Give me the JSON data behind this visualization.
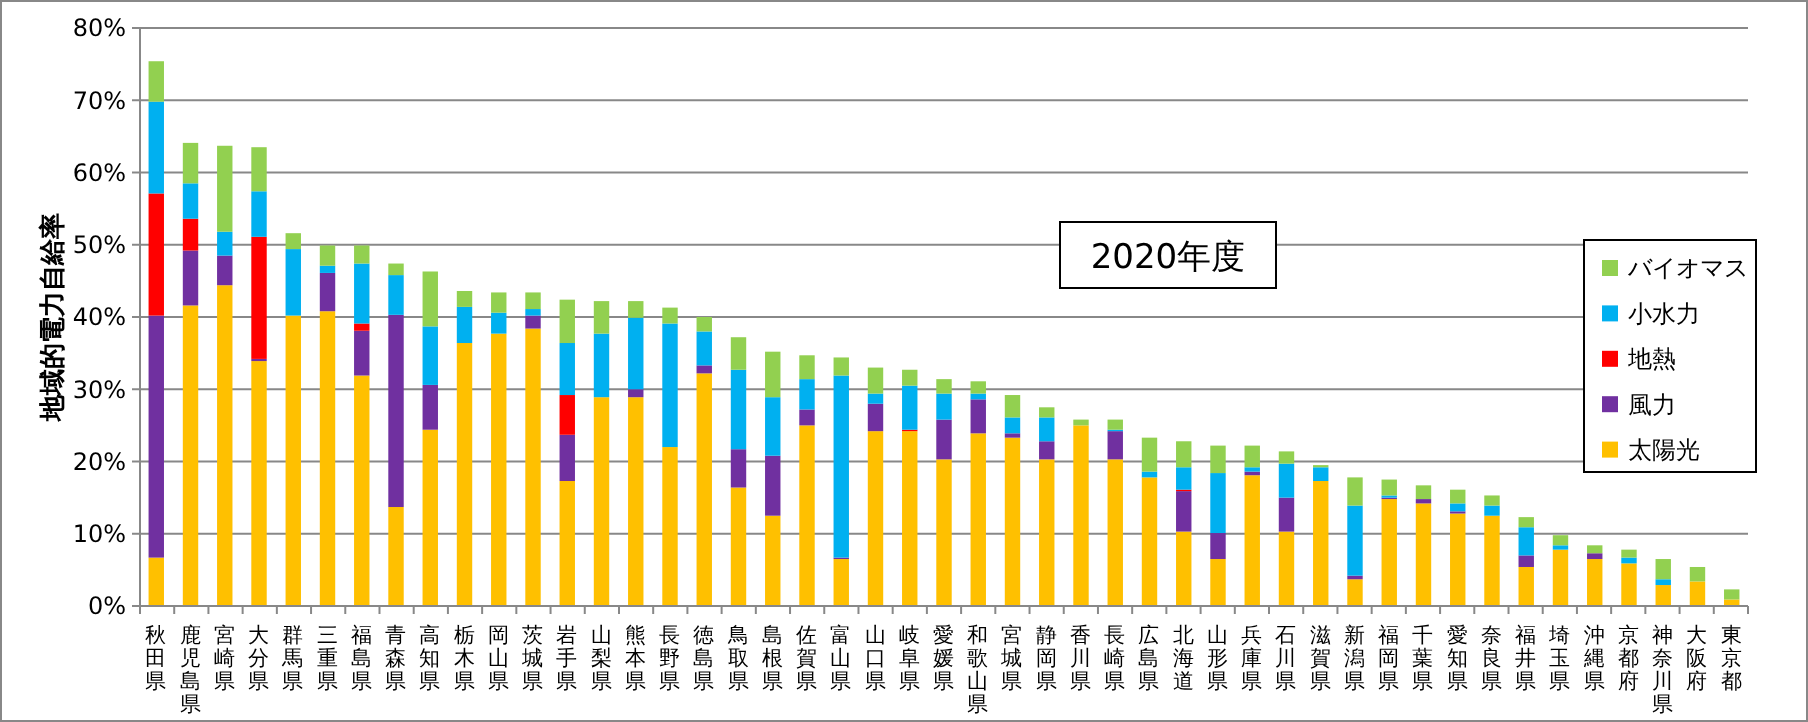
{
  "chart_data": {
    "type": "bar",
    "title": "2020年度",
    "ylabel": "地域的電力自給率",
    "categories": [
      "秋田県",
      "鹿児島県",
      "宮崎県",
      "大分県",
      "群馬県",
      "三重県",
      "福島県",
      "青森県",
      "高知県",
      "栃木県",
      "岡山県",
      "茨城県",
      "岩手県",
      "山梨県",
      "熊本県",
      "長野県",
      "徳島県",
      "鳥取県",
      "島根県",
      "佐賀県",
      "富山県",
      "山口県",
      "岐阜県",
      "愛媛県",
      "和歌山県",
      "宮城県",
      "静岡県",
      "香川県",
      "長崎県",
      "広島県",
      "北海道",
      "山形県",
      "兵庫県",
      "石川県",
      "滋賀県",
      "新潟県",
      "福岡県",
      "千葉県",
      "愛知県",
      "奈良県",
      "福井県",
      "埼玉県",
      "沖縄県",
      "京都府",
      "神奈川県",
      "大阪府",
      "東京都"
    ],
    "stacked": true,
    "series": [
      {
        "name": "太陽光",
        "color": "#ffc000",
        "values": [
          6.7,
          41.6,
          44.4,
          33.9,
          40.2,
          40.8,
          31.9,
          13.7,
          24.4,
          36.4,
          37.7,
          38.4,
          17.3,
          28.9,
          28.9,
          22.0,
          32.2,
          16.4,
          12.5,
          25.0,
          6.5,
          24.2,
          24.2,
          20.3,
          23.9,
          23.3,
          20.3,
          25.0,
          20.3,
          17.8,
          10.3,
          6.5,
          18.1,
          10.3,
          17.3,
          3.7,
          14.8,
          14.2,
          12.8,
          12.5,
          5.4,
          7.8,
          6.5,
          5.9,
          2.9,
          3.4,
          0.9
        ]
      },
      {
        "name": "風力",
        "color": "#7030a0",
        "values": [
          33.5,
          7.6,
          4.1,
          0.3,
          0,
          5.3,
          6.2,
          26.6,
          6.2,
          0,
          0,
          1.8,
          6.4,
          0,
          1.1,
          0,
          1.1,
          5.3,
          8.3,
          2.2,
          0.2,
          3.8,
          0,
          5.5,
          4.7,
          0.6,
          2.5,
          0,
          3.9,
          0,
          5.6,
          3.6,
          0.5,
          4.7,
          0,
          0.5,
          0.2,
          0.6,
          0.3,
          0,
          1.6,
          0,
          0.8,
          0,
          0,
          0,
          0
        ]
      },
      {
        "name": "地熱",
        "color": "#ff0000",
        "values": [
          16.9,
          4.4,
          0,
          16.9,
          0,
          0,
          1.0,
          0,
          0,
          0,
          0,
          0,
          5.5,
          0,
          0,
          0,
          0,
          0,
          0,
          0,
          0,
          0,
          0.2,
          0,
          0,
          0,
          0,
          0,
          0,
          0,
          0.2,
          0,
          0,
          0,
          0,
          0,
          0,
          0,
          0,
          0,
          0,
          0,
          0,
          0,
          0,
          0,
          0
        ]
      },
      {
        "name": "小水力",
        "color": "#00b0f0",
        "values": [
          12.7,
          4.9,
          3.3,
          6.3,
          9.2,
          1.0,
          8.3,
          5.5,
          8.1,
          5.0,
          2.9,
          0.9,
          7.2,
          8.8,
          9.9,
          17.1,
          4.7,
          11.0,
          8.1,
          4.2,
          25.2,
          1.4,
          6.1,
          3.6,
          0.8,
          2.2,
          3.3,
          0,
          0.2,
          0.8,
          3.1,
          8.3,
          0.6,
          4.7,
          1.9,
          9.7,
          0.3,
          0,
          1.1,
          1.4,
          3.9,
          0.6,
          0,
          0.8,
          0.8,
          0,
          0
        ]
      },
      {
        "name": "バイオマス",
        "color": "#92d050",
        "values": [
          5.6,
          5.6,
          11.9,
          6.1,
          2.2,
          2.8,
          2.5,
          1.6,
          7.6,
          2.2,
          2.8,
          2.3,
          6.0,
          4.5,
          2.3,
          2.2,
          2.0,
          4.5,
          6.3,
          3.3,
          2.5,
          3.6,
          2.2,
          2.0,
          1.7,
          3.1,
          1.4,
          0.8,
          1.4,
          4.7,
          3.6,
          3.8,
          3.0,
          1.7,
          0.3,
          3.9,
          2.2,
          1.9,
          1.9,
          1.4,
          1.4,
          1.4,
          1.1,
          1.1,
          2.8,
          2.0,
          1.4
        ]
      }
    ],
    "ylim": [
      0,
      80
    ],
    "yticks": [
      {
        "value": 0,
        "label": "0%"
      },
      {
        "value": 10,
        "label": "10%"
      },
      {
        "value": 20,
        "label": "20%"
      },
      {
        "value": 30,
        "label": "30%"
      },
      {
        "value": 40,
        "label": "40%"
      },
      {
        "value": 50,
        "label": "50%"
      },
      {
        "value": 60,
        "label": "60%"
      },
      {
        "value": 70,
        "label": "70%"
      },
      {
        "value": 80,
        "label": "80%"
      }
    ],
    "grid": "y",
    "legend": "right"
  }
}
